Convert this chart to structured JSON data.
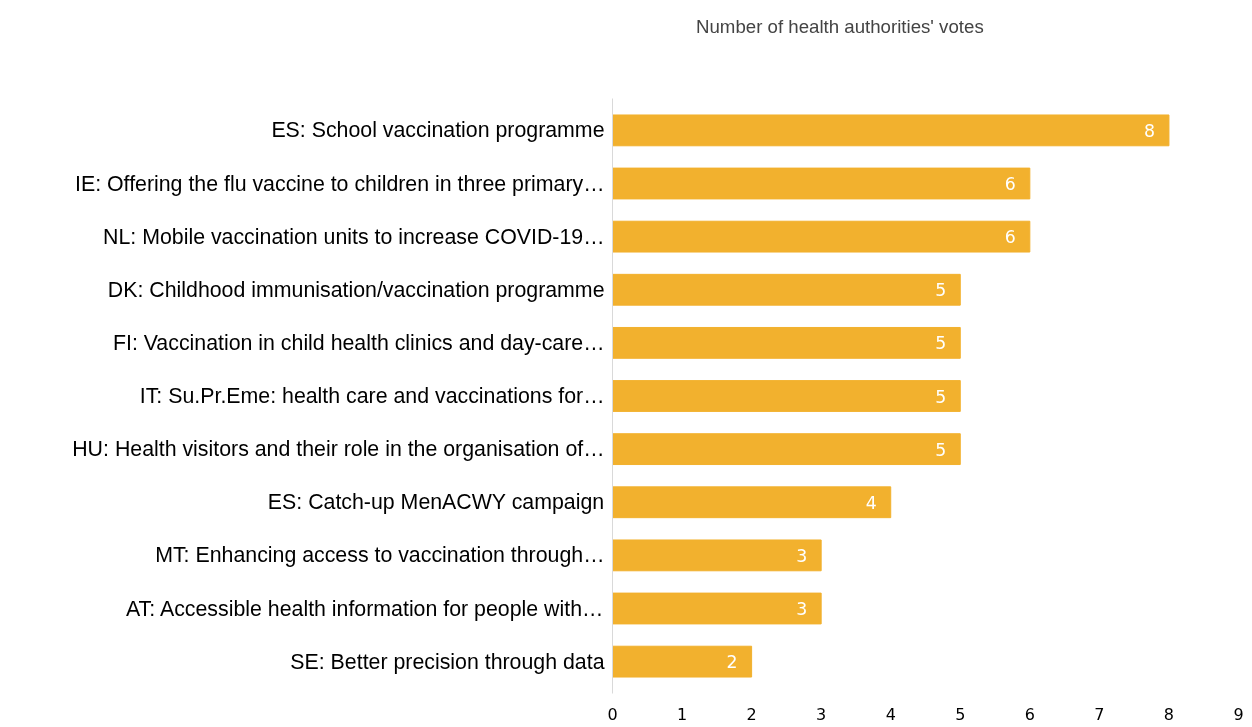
{
  "chart_data": {
    "type": "bar",
    "orientation": "horizontal",
    "categories": [
      "ES: School vaccination programme",
      "IE: Offering the flu vaccine to children in three primary…",
      "NL: Mobile vaccination units to increase COVID-19…",
      "DK: Childhood immunisation/vaccination programme",
      "FI: Vaccination in child health clinics and day-care…",
      "IT: Su.Pr.Eme: health care and vaccinations for…",
      "HU: Health visitors and their role in the organisation of…",
      "ES: Catch-up MenACWY campaign",
      "MT: Enhancing access to vaccination through…",
      "AT: Accessible health information for people with…",
      "SE: Better precision through data"
    ],
    "series": [
      {
        "name": "Number of health authorities' votes",
        "color": "#f2b12e",
        "values": [
          8,
          6,
          6,
          5,
          5,
          5,
          5,
          4,
          3,
          3,
          2
        ]
      }
    ],
    "xlim": [
      0,
      9
    ],
    "xticks": [
      0,
      1,
      2,
      3,
      4,
      5,
      6,
      7,
      8,
      9
    ],
    "data_labels": true,
    "grid": false,
    "legend": "top left"
  }
}
